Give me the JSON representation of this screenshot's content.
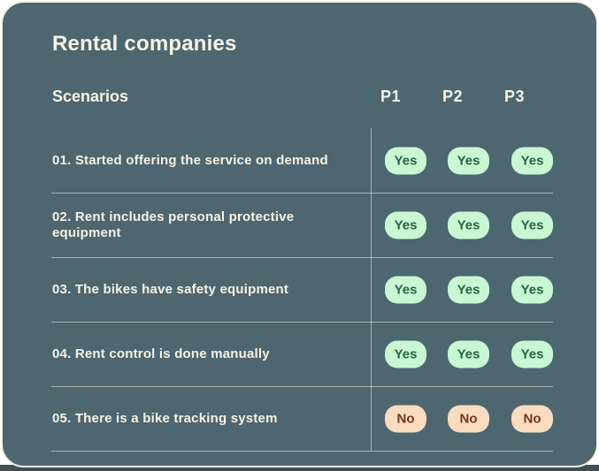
{
  "colors": {
    "card_bg": "#4d6670",
    "card_border": "#f7f2e5",
    "text_cream": "#f7f2e5",
    "divider": "rgba(244,240,230,0.55)",
    "yes_bg": "#c9f6d3",
    "yes_text": "#24673c",
    "no_bg": "#f9dbc0",
    "no_text": "#76331e",
    "bottom_strip": "#414f54"
  },
  "card": {
    "title": "Rental companies",
    "table": {
      "scenarios_label": "Scenarios",
      "columns": [
        "P1",
        "P2",
        "P3"
      ],
      "rows": [
        {
          "label": "01. Started offering the service on demand",
          "values": [
            "Yes",
            "Yes",
            "Yes"
          ]
        },
        {
          "label": "02. Rent includes personal protective equipment",
          "values": [
            "Yes",
            "Yes",
            "Yes"
          ]
        },
        {
          "label": "03. The bikes have safety equipment",
          "values": [
            "Yes",
            "Yes",
            "Yes"
          ]
        },
        {
          "label": "04. Rent control is done manually",
          "values": [
            "Yes",
            "Yes",
            "Yes"
          ]
        },
        {
          "label": "05. There is a bike tracking system",
          "values": [
            "No",
            "No",
            "No"
          ]
        }
      ]
    }
  },
  "chart_data": {
    "type": "table",
    "title": "Rental companies",
    "columns": [
      "Scenarios",
      "P1",
      "P2",
      "P3"
    ],
    "rows": [
      [
        "01. Started offering the service on demand",
        "Yes",
        "Yes",
        "Yes"
      ],
      [
        "02. Rent includes personal protective equipment",
        "Yes",
        "Yes",
        "Yes"
      ],
      [
        "03. The bikes have safety equipment",
        "Yes",
        "Yes",
        "Yes"
      ],
      [
        "04. Rent control is done manually",
        "Yes",
        "Yes",
        "Yes"
      ],
      [
        "05. There is a bike tracking system",
        "No",
        "No",
        "No"
      ]
    ]
  }
}
